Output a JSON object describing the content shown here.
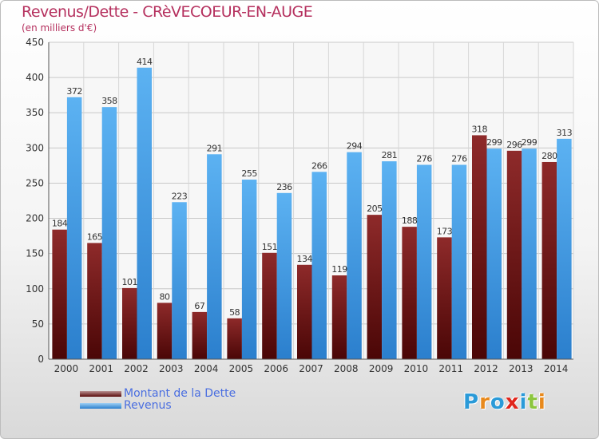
{
  "chart_data": {
    "type": "bar",
    "title": "Revenus/Dette - CRèVECOEUR-EN-AUGE",
    "subtitle": "(en milliers d'€)",
    "categories": [
      "2000",
      "2001",
      "2002",
      "2003",
      "2004",
      "2005",
      "2006",
      "2007",
      "2008",
      "2009",
      "2010",
      "2011",
      "2012",
      "2013",
      "2014"
    ],
    "series": [
      {
        "name": "Montant de la Dette",
        "color": "#7a1e1e",
        "values": [
          184,
          165,
          101,
          80,
          67,
          58,
          151,
          134,
          119,
          205,
          188,
          173,
          318,
          296,
          280
        ]
      },
      {
        "name": "Revenus",
        "color": "#3a9ae4",
        "values": [
          372,
          358,
          414,
          223,
          291,
          255,
          236,
          266,
          294,
          281,
          276,
          276,
          299,
          299,
          313
        ]
      }
    ],
    "ylim": [
      0,
      450
    ],
    "yticks": [
      0,
      50,
      100,
      150,
      200,
      250,
      300,
      350,
      400,
      450
    ],
    "grid": true,
    "legend": "bottom-left"
  },
  "logo": {
    "text": "Proxiti",
    "letters": [
      "P",
      "r",
      "o",
      "x",
      "i",
      "t",
      "i"
    ],
    "colors": [
      "#2a9ad8",
      "#e8891c",
      "#2a9ad8",
      "#e0261c",
      "#2a9ad8",
      "#8cc63f",
      "#e8891c"
    ]
  }
}
